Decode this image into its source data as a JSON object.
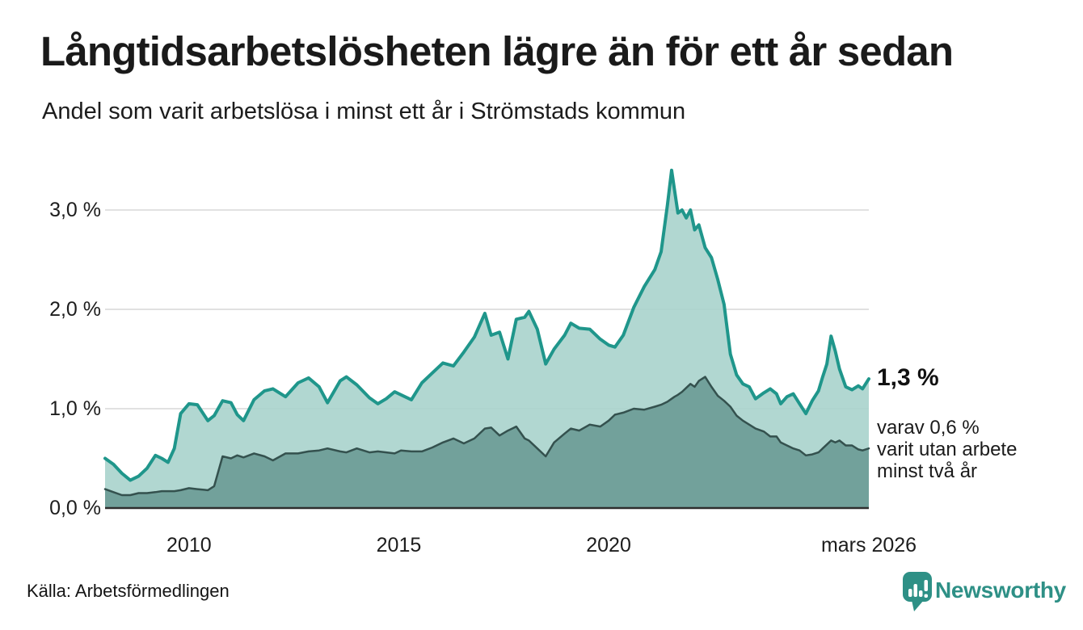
{
  "header": {
    "title": "Långtidsarbetslösheten lägre än för ett år sedan",
    "subtitle": "Andel som varit arbetslösa i minst ett år i Strömstads kommun"
  },
  "footer": {
    "source": "Källa: Arbetsförmedlingen",
    "brand": "Newsworthy"
  },
  "colors": {
    "series1_line": "#1f968b",
    "series1_fill": "#a9d3cc",
    "series2_line": "#34514e",
    "series2_fill": "#6f9e98",
    "gridline": "#e1e1e1",
    "axis": "#2e2e2e",
    "brand": "#2e9086"
  },
  "chart_data": {
    "type": "area",
    "title": "Långtidsarbetslösheten lägre än för ett år sedan",
    "subtitle": "Andel som varit arbetslösa i minst ett år i Strömstads kommun",
    "xlabel": "",
    "ylabel": "",
    "x_range": [
      2008.0,
      2026.2
    ],
    "ylim": [
      0,
      3.45
    ],
    "grid": "horizontal",
    "legend": "none",
    "y_ticks": [
      {
        "label": "0,0 %",
        "value": 0
      },
      {
        "label": "1,0 %",
        "value": 1
      },
      {
        "label": "2,0 %",
        "value": 2
      },
      {
        "label": "3,0 %",
        "value": 3
      }
    ],
    "x_ticks": [
      {
        "label": "2010",
        "year": 2010
      },
      {
        "label": "2015",
        "year": 2015
      },
      {
        "label": "2020",
        "year": 2020
      },
      {
        "label": "mars 2026",
        "year": 2026.2
      }
    ],
    "series_meta": [
      {
        "name": "Arbetslösa minst ett år",
        "line": "#1f968b",
        "line_width": 4,
        "fill": "#a9d3cc",
        "fill_opacity": 0.9
      },
      {
        "name": "Varav utan arbete minst två år",
        "line": "#34514e",
        "line_width": 2.5,
        "fill": "#6f9e98",
        "fill_opacity": 0.95
      }
    ],
    "points": [
      [
        2008.0,
        0.5,
        0.19
      ],
      [
        2008.2,
        0.44,
        0.16
      ],
      [
        2008.4,
        0.35,
        0.13
      ],
      [
        2008.6,
        0.28,
        0.13
      ],
      [
        2008.8,
        0.32,
        0.15
      ],
      [
        2009.0,
        0.4,
        0.15
      ],
      [
        2009.2,
        0.53,
        0.16
      ],
      [
        2009.35,
        0.5,
        0.17
      ],
      [
        2009.5,
        0.46,
        0.17
      ],
      [
        2009.65,
        0.6,
        0.17
      ],
      [
        2009.8,
        0.95,
        0.18
      ],
      [
        2010.0,
        1.05,
        0.2
      ],
      [
        2010.2,
        1.04,
        0.19
      ],
      [
        2010.45,
        0.88,
        0.18
      ],
      [
        2010.6,
        0.93,
        0.22
      ],
      [
        2010.8,
        1.08,
        0.52
      ],
      [
        2011.0,
        1.06,
        0.5
      ],
      [
        2011.15,
        0.94,
        0.53
      ],
      [
        2011.3,
        0.88,
        0.51
      ],
      [
        2011.55,
        1.09,
        0.55
      ],
      [
        2011.8,
        1.18,
        0.52
      ],
      [
        2012.0,
        1.2,
        0.48
      ],
      [
        2012.3,
        1.12,
        0.55
      ],
      [
        2012.6,
        1.26,
        0.55
      ],
      [
        2012.85,
        1.31,
        0.57
      ],
      [
        2013.1,
        1.22,
        0.58
      ],
      [
        2013.3,
        1.06,
        0.6
      ],
      [
        2013.6,
        1.28,
        0.57
      ],
      [
        2013.75,
        1.32,
        0.56
      ],
      [
        2014.0,
        1.24,
        0.6
      ],
      [
        2014.3,
        1.11,
        0.56
      ],
      [
        2014.5,
        1.05,
        0.57
      ],
      [
        2014.7,
        1.1,
        0.56
      ],
      [
        2014.9,
        1.17,
        0.55
      ],
      [
        2015.05,
        1.14,
        0.58
      ],
      [
        2015.3,
        1.09,
        0.57
      ],
      [
        2015.55,
        1.26,
        0.57
      ],
      [
        2015.8,
        1.36,
        0.61
      ],
      [
        2016.05,
        1.46,
        0.66
      ],
      [
        2016.3,
        1.43,
        0.7
      ],
      [
        2016.55,
        1.57,
        0.65
      ],
      [
        2016.8,
        1.72,
        0.7
      ],
      [
        2017.05,
        1.96,
        0.8
      ],
      [
        2017.2,
        1.74,
        0.81
      ],
      [
        2017.4,
        1.77,
        0.73
      ],
      [
        2017.6,
        1.5,
        0.78
      ],
      [
        2017.8,
        1.9,
        0.82
      ],
      [
        2018.0,
        1.92,
        0.7
      ],
      [
        2018.1,
        1.98,
        0.68
      ],
      [
        2018.3,
        1.8,
        0.6
      ],
      [
        2018.5,
        1.45,
        0.52
      ],
      [
        2018.7,
        1.6,
        0.66
      ],
      [
        2018.95,
        1.74,
        0.75
      ],
      [
        2019.1,
        1.86,
        0.8
      ],
      [
        2019.3,
        1.81,
        0.78
      ],
      [
        2019.55,
        1.8,
        0.84
      ],
      [
        2019.8,
        1.7,
        0.82
      ],
      [
        2020.0,
        1.64,
        0.88
      ],
      [
        2020.15,
        1.62,
        0.94
      ],
      [
        2020.35,
        1.74,
        0.96
      ],
      [
        2020.6,
        2.02,
        1.0
      ],
      [
        2020.85,
        2.23,
        0.99
      ],
      [
        2021.1,
        2.4,
        1.02
      ],
      [
        2021.25,
        2.58,
        1.04
      ],
      [
        2021.4,
        3.05,
        1.07
      ],
      [
        2021.5,
        3.4,
        1.1
      ],
      [
        2021.57,
        3.2,
        1.12
      ],
      [
        2021.65,
        2.97,
        1.14
      ],
      [
        2021.75,
        3.0,
        1.17
      ],
      [
        2021.85,
        2.92,
        1.21
      ],
      [
        2021.95,
        3.0,
        1.25
      ],
      [
        2022.05,
        2.8,
        1.22
      ],
      [
        2022.15,
        2.85,
        1.28
      ],
      [
        2022.3,
        2.62,
        1.32
      ],
      [
        2022.45,
        2.52,
        1.22
      ],
      [
        2022.6,
        2.3,
        1.13
      ],
      [
        2022.75,
        2.05,
        1.08
      ],
      [
        2022.9,
        1.55,
        1.02
      ],
      [
        2023.05,
        1.34,
        0.93
      ],
      [
        2023.2,
        1.25,
        0.88
      ],
      [
        2023.35,
        1.22,
        0.84
      ],
      [
        2023.5,
        1.1,
        0.8
      ],
      [
        2023.7,
        1.16,
        0.77
      ],
      [
        2023.85,
        1.2,
        0.72
      ],
      [
        2024.0,
        1.15,
        0.72
      ],
      [
        2024.1,
        1.05,
        0.66
      ],
      [
        2024.25,
        1.12,
        0.63
      ],
      [
        2024.4,
        1.15,
        0.6
      ],
      [
        2024.55,
        1.05,
        0.58
      ],
      [
        2024.7,
        0.95,
        0.53
      ],
      [
        2024.85,
        1.08,
        0.54
      ],
      [
        2025.0,
        1.18,
        0.56
      ],
      [
        2025.1,
        1.32,
        0.6
      ],
      [
        2025.2,
        1.45,
        0.64
      ],
      [
        2025.3,
        1.73,
        0.68
      ],
      [
        2025.4,
        1.58,
        0.66
      ],
      [
        2025.5,
        1.4,
        0.68
      ],
      [
        2025.65,
        1.22,
        0.63
      ],
      [
        2025.8,
        1.19,
        0.63
      ],
      [
        2025.95,
        1.23,
        0.59
      ],
      [
        2026.05,
        1.2,
        0.58
      ],
      [
        2026.2,
        1.3,
        0.6
      ]
    ],
    "annotations": {
      "value_label": "1,3 %",
      "sub_label_lines": [
        "varav 0,6 %",
        "varit utan arbete",
        "minst två år"
      ]
    }
  }
}
